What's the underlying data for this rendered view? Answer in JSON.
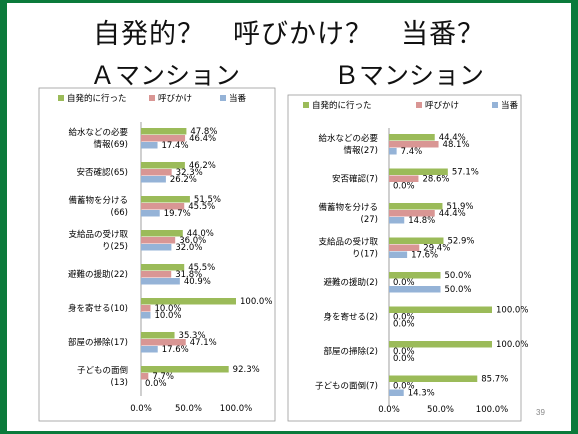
{
  "slide": {
    "title": "自発的？　呼びかけ？　当番？",
    "page_number": "39"
  },
  "colors": {
    "series": [
      "#9bbb59",
      "#d99694",
      "#95b3d7"
    ],
    "frame": "#0b7a3b"
  },
  "chart_data": [
    {
      "type": "bar",
      "orientation": "horizontal",
      "title": "Ａマンション",
      "categories": [
        [
          "給水などの必要",
          "情報(69)"
        ],
        [
          "安否確認(65)"
        ],
        [
          "備蓄物を分ける",
          "(66)"
        ],
        [
          "支給品の受け取",
          "り(25)"
        ],
        [
          "避難の援助(22)"
        ],
        [
          "身を寄せる(10)"
        ],
        [
          "部屋の掃除(17)"
        ],
        [
          "子どもの面倒",
          "(13)"
        ]
      ],
      "series": [
        {
          "name": "自発的に行った",
          "values": [
            47.8,
            46.2,
            51.5,
            44.0,
            45.5,
            100.0,
            35.3,
            92.3
          ]
        },
        {
          "name": "呼びかけ",
          "values": [
            46.4,
            32.3,
            45.5,
            36.0,
            31.8,
            10.0,
            47.1,
            7.7
          ]
        },
        {
          "name": "当番",
          "values": [
            17.4,
            26.2,
            19.7,
            32.0,
            40.9,
            10.0,
            17.6,
            0.0
          ]
        }
      ],
      "value_labels": [
        [
          "47.8%",
          "46.2%",
          "51.5%",
          "44.0%",
          "45.5%",
          "100.0%",
          "35.3%",
          "92.3%"
        ],
        [
          "46.4%",
          "32.3%",
          "45.5%",
          "36.0%",
          "31.8%",
          "10.0%",
          "47.1%",
          "7.7%"
        ],
        [
          "17.4%",
          "26.2%",
          "19.7%",
          "32.0%",
          "40.9%",
          "10.0%",
          "17.6%",
          "0.0%"
        ]
      ],
      "x_ticks": [
        "0.0%",
        "50.0%",
        "100.0%"
      ],
      "xlim": [
        0,
        100
      ],
      "legend": "top",
      "grid": false
    },
    {
      "type": "bar",
      "orientation": "horizontal",
      "title": "Ｂマンション",
      "categories": [
        [
          "給水などの必要",
          "情報(27)"
        ],
        [
          "安否確認(7)"
        ],
        [
          "備蓄物を分ける",
          "(27)"
        ],
        [
          "支給品の受け取",
          "り(17)"
        ],
        [
          "避難の援助(2)"
        ],
        [
          "身を寄せる(2)"
        ],
        [
          "部屋の掃除(2)"
        ],
        [
          "子どもの面倒(7)"
        ]
      ],
      "series": [
        {
          "name": "自発的に行った",
          "values": [
            44.4,
            57.1,
            51.9,
            52.9,
            50.0,
            100.0,
            100.0,
            85.7
          ]
        },
        {
          "name": "呼びかけ",
          "values": [
            48.1,
            28.6,
            44.4,
            29.4,
            0.0,
            0.0,
            0.0,
            0.0
          ]
        },
        {
          "name": "当番",
          "values": [
            7.4,
            0.0,
            14.8,
            17.6,
            50.0,
            0.0,
            0.0,
            14.3
          ]
        }
      ],
      "value_labels": [
        [
          "44.4%",
          "57.1%",
          "51.9%",
          "52.9%",
          "50.0%",
          "100.0%",
          "100.0%",
          "85.7%"
        ],
        [
          "48.1%",
          "28.6%",
          "44.4%",
          "29.4%",
          "0.0%",
          "0.0%",
          "0.0%",
          "0.0%"
        ],
        [
          "7.4%",
          "0.0%",
          "14.8%",
          "17.6%",
          "50.0%",
          "0.0%",
          "0.0%",
          "14.3%"
        ]
      ],
      "x_ticks": [
        "0.0%",
        "50.0%",
        "100.0%"
      ],
      "xlim": [
        0,
        100
      ],
      "legend": "top",
      "grid": false
    }
  ]
}
